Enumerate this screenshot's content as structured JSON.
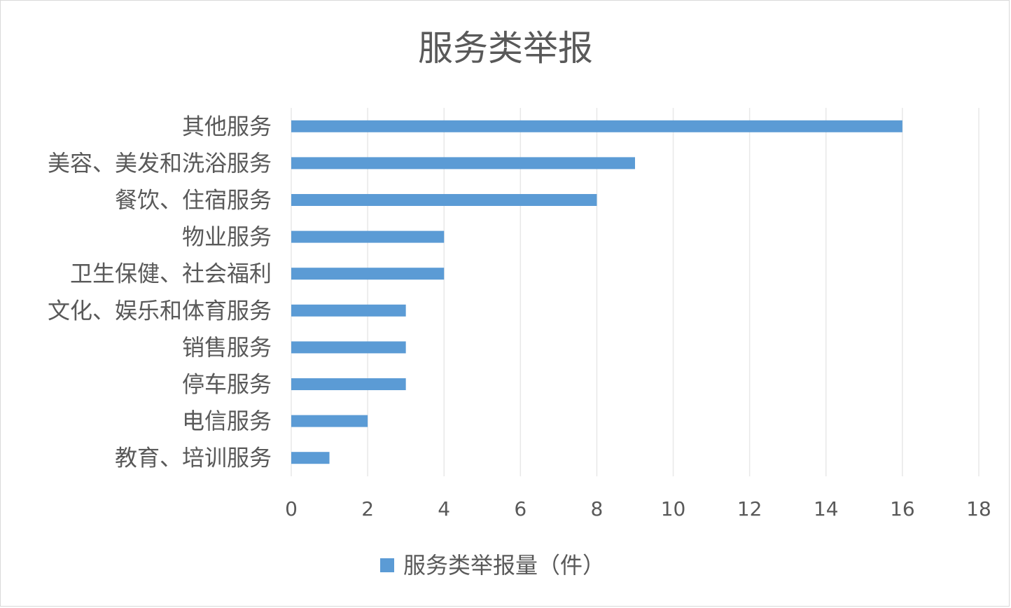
{
  "chart_data": {
    "type": "bar",
    "orientation": "horizontal",
    "title": "服务类举报",
    "categories": [
      "其他服务",
      "美容、美发和洗浴服务",
      "餐饮、住宿服务",
      "物业服务",
      "卫生保健、社会福利",
      "文化、娱乐和体育服务",
      "销售服务",
      "停车服务",
      "电信服务",
      "教育、培训服务"
    ],
    "series": [
      {
        "name": "服务类举报量（件）",
        "values": [
          16,
          9,
          8,
          4,
          4,
          3,
          3,
          3,
          2,
          1
        ],
        "color": "#5b9bd5"
      }
    ],
    "xlim": [
      0,
      18
    ],
    "xticks": [
      0,
      2,
      4,
      6,
      8,
      10,
      12,
      14,
      16,
      18
    ],
    "grid": "vertical",
    "legend_position": "bottom"
  },
  "colors": {
    "bar": "#5b9bd5",
    "grid": "#e8e8e8",
    "text": "#595959"
  }
}
